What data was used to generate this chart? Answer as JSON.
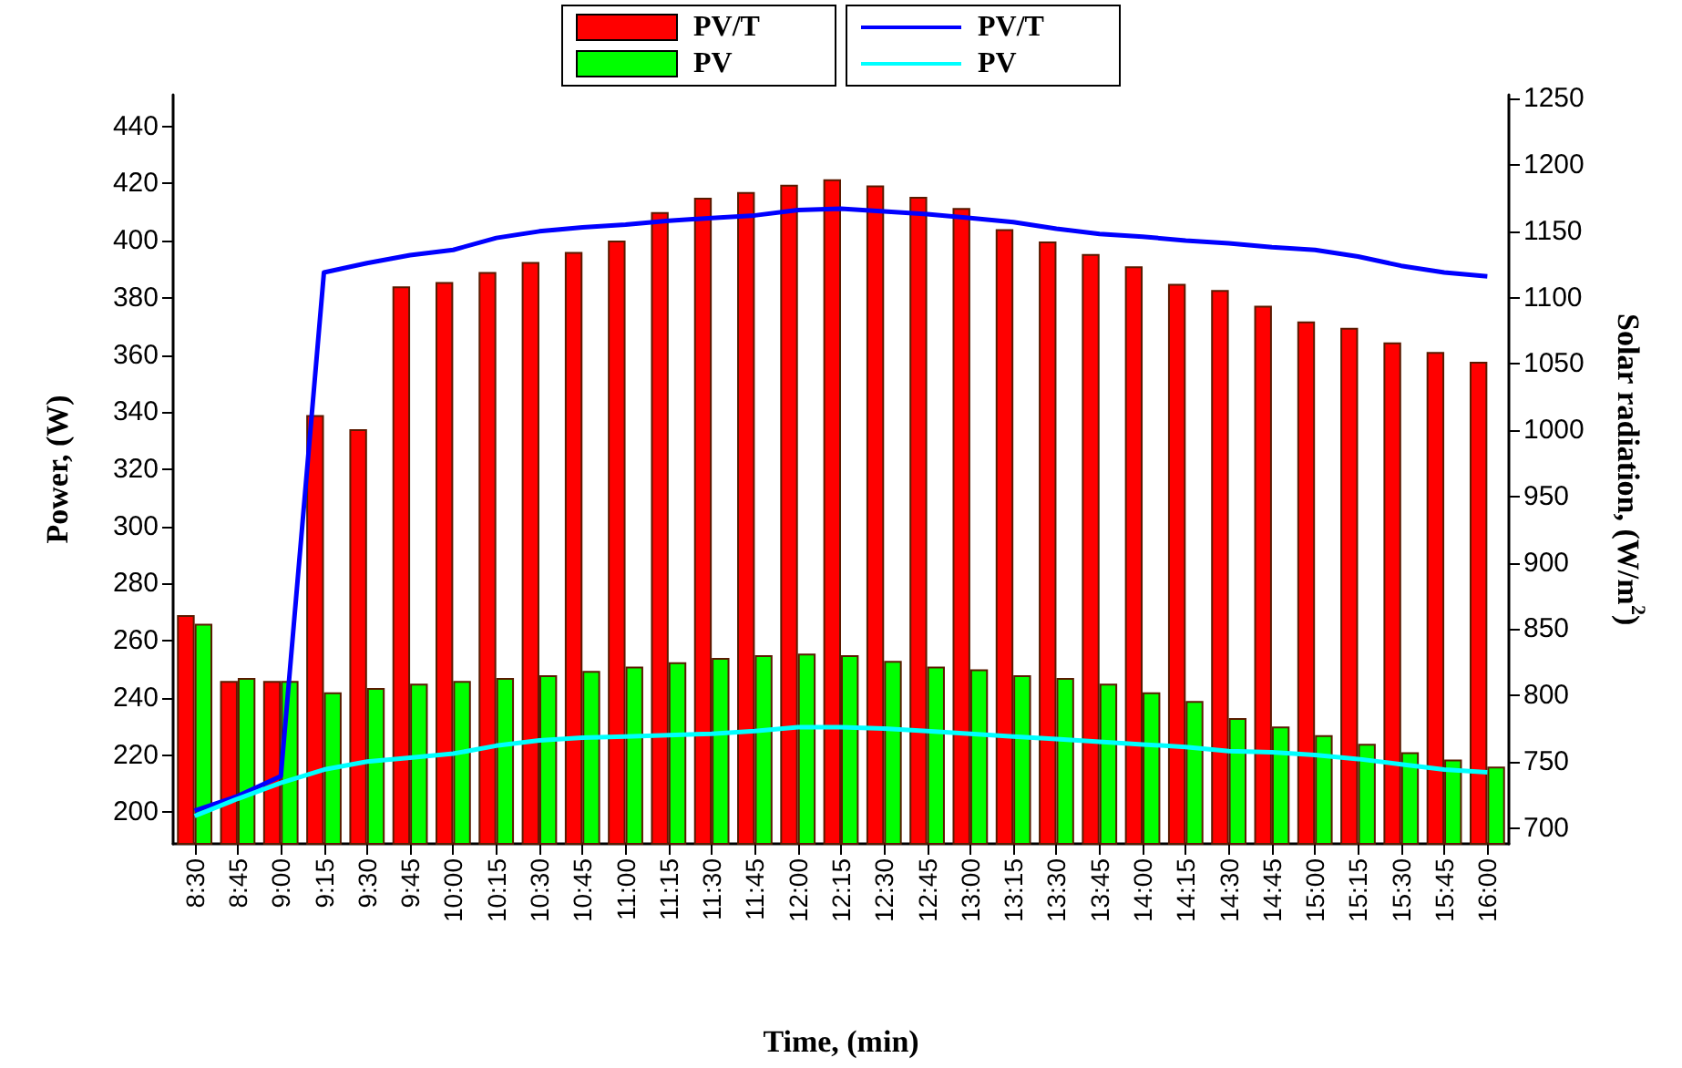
{
  "chart_data": {
    "type": "bar",
    "xlabel": "Time, (min)",
    "ylabel": "Power, (W)",
    "y2label": "Solar radiation, (W/m$^{2}$)",
    "categories": [
      "8:30",
      "8:45",
      "9:00",
      "9:15",
      "9:30",
      "9:45",
      "10:00",
      "10:15",
      "10:30",
      "10:45",
      "11:00",
      "11:15",
      "11:30",
      "11:45",
      "12:00",
      "12:15",
      "12:30",
      "12:45",
      "13:00",
      "13:15",
      "13:30",
      "13:45",
      "14:00",
      "14:15",
      "14:30",
      "14:45",
      "15:00",
      "15:15",
      "15:30",
      "15:45",
      "16:00"
    ],
    "ylim": [
      189,
      451
    ],
    "yticks": [
      200,
      220,
      240,
      260,
      280,
      300,
      320,
      340,
      360,
      380,
      400,
      420,
      440
    ],
    "y2lim": [
      688,
      1253
    ],
    "y2ticks": [
      700,
      750,
      800,
      850,
      900,
      950,
      1000,
      1050,
      1100,
      1150,
      1200,
      1250
    ],
    "grid": false,
    "legend": "top",
    "series": [
      {
        "name": "PV/T",
        "color": "#ff0000",
        "values": [
          269,
          246,
          246,
          339,
          334,
          384,
          385.5,
          389,
          392.5,
          396,
          400,
          410,
          415,
          417,
          419.5,
          421.4,
          419.3,
          415.3,
          411.4,
          404,
          399.7,
          395.3,
          391,
          384.9,
          382.7,
          377.2,
          371.7,
          369.5,
          364.4,
          361,
          357.6
        ]
      },
      {
        "name": "PV",
        "color": "#00ff00",
        "values": [
          266,
          247,
          246,
          242,
          243.5,
          245,
          246,
          247,
          248,
          249.5,
          251,
          252.5,
          254,
          255,
          255.5,
          255,
          253,
          251,
          250,
          248,
          247,
          245,
          242,
          239,
          233,
          230,
          227,
          224,
          221,
          218.5,
          216
        ]
      },
      {
        "name": "PV/T",
        "type": "line",
        "axis": "y2",
        "color": "#0000ff",
        "values": [
          713,
          724,
          739,
          1119,
          1126,
          1132,
          1136,
          1145,
          1150,
          1153,
          1155,
          1158,
          1160,
          1162,
          1166,
          1167,
          1165,
          1163,
          1160,
          1157,
          1152,
          1148,
          1146,
          1143,
          1141,
          1138,
          1136,
          1131,
          1124,
          1119,
          1116
        ]
      },
      {
        "name": "PV",
        "type": "line",
        "axis": "y2",
        "color": "#00ffff",
        "values": [
          709,
          722,
          734,
          744,
          750,
          753,
          756,
          762,
          766,
          768,
          769,
          770,
          771,
          773,
          776,
          776,
          775,
          773,
          771,
          769,
          767,
          765,
          763,
          761,
          758,
          757,
          755,
          752,
          748,
          744,
          742
        ]
      }
    ]
  }
}
